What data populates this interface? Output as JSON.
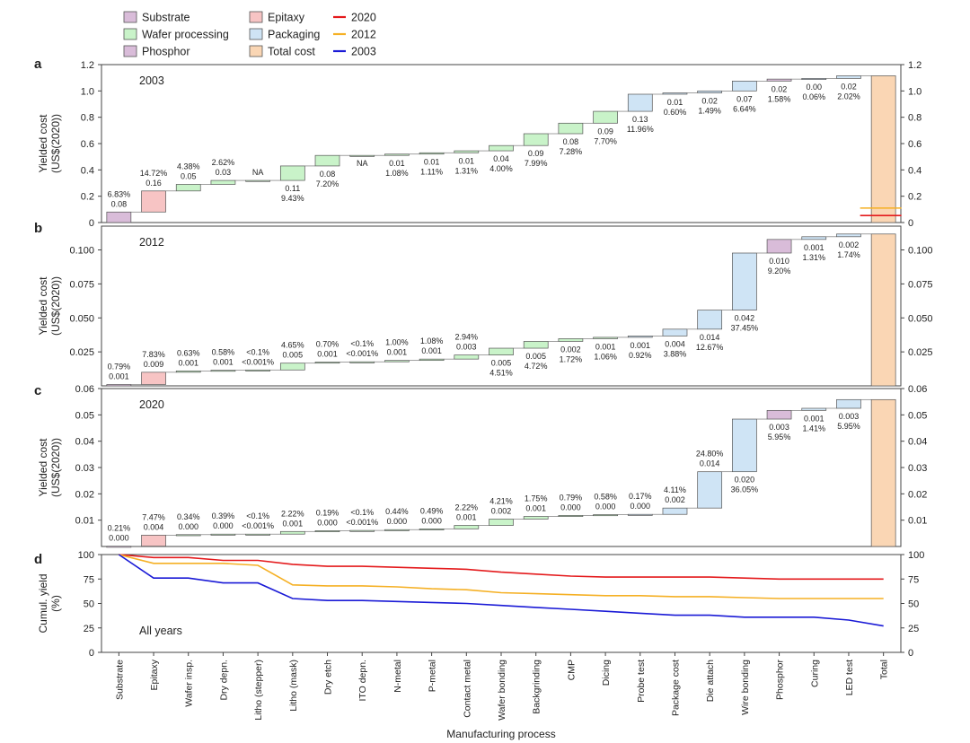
{
  "chart_data": {
    "type": "waterfall",
    "categories": [
      "Substrate",
      "Epitaxy",
      "Wafer insp.",
      "Dry depn.",
      "Litho (stepper)",
      "Litho (mask)",
      "Dry etch",
      "ITO depn.",
      "N-metal",
      "P-metal",
      "Contact metal",
      "Wafer bonding",
      "Backgrinding",
      "CMP",
      "Dicing",
      "Probe test",
      "Package cost",
      "Die attach",
      "Wire bonding",
      "Phosphor",
      "Curing",
      "LED test",
      "Total"
    ],
    "category_types": [
      "Substrate",
      "Epitaxy",
      "Wafer processing",
      "Wafer processing",
      "Wafer processing",
      "Wafer processing",
      "Wafer processing",
      "Wafer processing",
      "Wafer processing",
      "Wafer processing",
      "Wafer processing",
      "Wafer processing",
      "Wafer processing",
      "Wafer processing",
      "Wafer processing",
      "Packaging",
      "Packaging",
      "Packaging",
      "Packaging",
      "Phosphor",
      "Packaging",
      "Packaging",
      "Total cost"
    ],
    "xlabel": "Manufacturing process",
    "legend": {
      "boxes": [
        {
          "label": "Substrate",
          "color": "#d9bcd9"
        },
        {
          "label": "Epitaxy",
          "color": "#f7c4c4"
        },
        {
          "label": "Wafer processing",
          "color": "#c9f3c9"
        },
        {
          "label": "Packaging",
          "color": "#cfe4f5"
        },
        {
          "label": "Phosphor",
          "color": "#d9bcd9"
        },
        {
          "label": "Total cost",
          "color": "#fad6b4"
        }
      ],
      "lines": [
        {
          "label": "2020",
          "color": "#e41a1c"
        },
        {
          "label": "2012",
          "color": "#f5b024"
        },
        {
          "label": "2003",
          "color": "#1a1ad6"
        }
      ]
    },
    "panels": [
      {
        "letter": "a",
        "year": "2003",
        "ylabel": [
          "Yielded cost",
          "(US$(2020))"
        ],
        "ylim": [
          0,
          1.2
        ],
        "yticks": [
          "0",
          "0.2",
          "0.4",
          "0.6",
          "0.8",
          "1.0",
          "1.2"
        ],
        "ytick_values": [
          0,
          0.2,
          0.4,
          0.6,
          0.8,
          1.0,
          1.2
        ],
        "cumulative": [
          0.08,
          0.24,
          0.29,
          0.32,
          0.32,
          0.43,
          0.51,
          0.51,
          0.52,
          0.53,
          0.545,
          0.585,
          0.675,
          0.755,
          0.845,
          0.975,
          0.985,
          1.0,
          1.075,
          1.09,
          1.095,
          1.115,
          1.115
        ],
        "annotations": [
          [
            "6.83%",
            "0.08"
          ],
          [
            "14.72%",
            "0.16"
          ],
          [
            "4.38%",
            "0.05"
          ],
          [
            "2.62%",
            "0.03"
          ],
          [
            "NA"
          ],
          [
            "0.11",
            "9.43%"
          ],
          [
            "0.08",
            "7.20%"
          ],
          [
            "NA"
          ],
          [
            "0.01",
            "1.08%"
          ],
          [
            "0.01",
            "1.11%"
          ],
          [
            "0.01",
            "1.31%"
          ],
          [
            "0.04",
            "4.00%"
          ],
          [
            "0.09",
            "7.99%"
          ],
          [
            "0.08",
            "7.28%"
          ],
          [
            "0.09",
            "7.70%"
          ],
          [
            "0.13",
            "11.96%"
          ],
          [
            "0.01",
            "0.60%"
          ],
          [
            "0.02",
            "1.49%"
          ],
          [
            "0.07",
            "6.64%"
          ],
          [
            "0.02",
            "1.58%"
          ],
          [
            "0.00",
            "0.06%"
          ],
          [
            "0.02",
            "2.02%"
          ],
          []
        ],
        "annotation_position": [
          "above",
          "above",
          "above",
          "above",
          "above",
          "below",
          "below",
          "below",
          "below",
          "below",
          "below",
          "below",
          "below",
          "below",
          "below",
          "below",
          "below",
          "below",
          "below",
          "below",
          "below",
          "below",
          "none"
        ],
        "total_markers": [
          {
            "value": 0.053,
            "color": "#e41a1c"
          },
          {
            "value": 0.11,
            "color": "#f5b024"
          }
        ]
      },
      {
        "letter": "b",
        "year": "2012",
        "ylabel": [
          "Yielded cost",
          "(US$(2020))"
        ],
        "ylim": [
          0,
          0.1175
        ],
        "yticks": [
          "0.025",
          "0.050",
          "0.075",
          "0.100"
        ],
        "ytick_values": [
          0.025,
          0.05,
          0.075,
          0.1
        ],
        "cumulative": [
          0.001,
          0.01,
          0.011,
          0.0115,
          0.0117,
          0.0167,
          0.0175,
          0.0177,
          0.0187,
          0.0197,
          0.0227,
          0.0277,
          0.0327,
          0.0347,
          0.0357,
          0.0367,
          0.0417,
          0.0557,
          0.0977,
          0.1077,
          0.1097,
          0.1117,
          0.1117
        ],
        "annotations": [
          [
            "0.79%",
            "0.001"
          ],
          [
            "7.83%",
            "0.009"
          ],
          [
            "0.63%",
            "0.001"
          ],
          [
            "0.58%",
            "0.001"
          ],
          [
            "<0.1%",
            "<0.001%"
          ],
          [
            "4.65%",
            "0.005"
          ],
          [
            "0.70%",
            "0.001"
          ],
          [
            "<0.1%",
            "<0.001%"
          ],
          [
            "1.00%",
            "0.001"
          ],
          [
            "1.08%",
            "0.001"
          ],
          [
            "2.94%",
            "0.003"
          ],
          [
            "0.005",
            "4.51%"
          ],
          [
            "0.005",
            "4.72%"
          ],
          [
            "0.002",
            "1.72%"
          ],
          [
            "0.001",
            "1.06%"
          ],
          [
            "0.001",
            "0.92%"
          ],
          [
            "0.004",
            "3.88%"
          ],
          [
            "0.014",
            "12.67%"
          ],
          [
            "0.042",
            "37.45%"
          ],
          [
            "0.010",
            "9.20%"
          ],
          [
            "0.001",
            "1.31%"
          ],
          [
            "0.002",
            "1.74%"
          ],
          []
        ],
        "annotation_position": [
          "above",
          "above",
          "above",
          "above",
          "above",
          "above",
          "above",
          "above",
          "above",
          "above",
          "above",
          "below",
          "below",
          "below",
          "below",
          "below",
          "below",
          "below",
          "below",
          "below",
          "below",
          "below",
          "none"
        ]
      },
      {
        "letter": "c",
        "year": "2020",
        "ylabel": [
          "Yielded cost",
          "(US$(2020))"
        ],
        "ylim": [
          0,
          0.06
        ],
        "yticks": [
          "0.01",
          "0.02",
          "0.03",
          "0.04",
          "0.05",
          "0.06"
        ],
        "ytick_values": [
          0.01,
          0.02,
          0.03,
          0.04,
          0.05,
          0.06
        ],
        "cumulative": [
          0.0001,
          0.0043,
          0.0045,
          0.0047,
          0.0047,
          0.0057,
          0.006,
          0.0061,
          0.0064,
          0.0067,
          0.008,
          0.0104,
          0.0114,
          0.0118,
          0.0121,
          0.0122,
          0.0146,
          0.0284,
          0.0484,
          0.0517,
          0.0525,
          0.0558,
          0.0558
        ],
        "annotations": [
          [
            "0.21%",
            "0.000"
          ],
          [
            "7.47%",
            "0.004"
          ],
          [
            "0.34%",
            "0.000"
          ],
          [
            "0.39%",
            "0.000"
          ],
          [
            "<0.1%",
            "<0.001%"
          ],
          [
            "2.22%",
            "0.001"
          ],
          [
            "0.19%",
            "0.000"
          ],
          [
            "<0.1%",
            "<0.001%"
          ],
          [
            "0.44%",
            "0.000"
          ],
          [
            "0.49%",
            "0.000"
          ],
          [
            "2.22%",
            "0.001"
          ],
          [
            "4.21%",
            "0.002"
          ],
          [
            "1.75%",
            "0.001"
          ],
          [
            "0.79%",
            "0.000"
          ],
          [
            "0.58%",
            "0.000"
          ],
          [
            "0.17%",
            "0.000"
          ],
          [
            "4.11%",
            "0.002"
          ],
          [
            "24.80%",
            "0.014"
          ],
          [
            "0.020",
            "36.05%"
          ],
          [
            "0.003",
            "5.95%"
          ],
          [
            "0.001",
            "1.41%"
          ],
          [
            "0.003",
            "5.95%"
          ],
          []
        ],
        "annotation_position": [
          "above",
          "above",
          "above",
          "above",
          "above",
          "above",
          "above",
          "above",
          "above",
          "above",
          "above",
          "above",
          "above",
          "above",
          "above",
          "above",
          "above",
          "above",
          "below",
          "below",
          "below",
          "below",
          "none"
        ]
      },
      {
        "letter": "d",
        "year": "All years",
        "ylabel": [
          "Cumul. yield",
          "(%)"
        ],
        "ylim": [
          0,
          100
        ],
        "yticks": [
          "0",
          "25",
          "50",
          "75",
          "100"
        ],
        "ytick_values": [
          0,
          25,
          50,
          75,
          100
        ],
        "series": [
          {
            "name": "2020",
            "color": "#e41a1c",
            "values": [
              100,
              97,
              97,
              94,
              94,
              90,
              88,
              88,
              87,
              86,
              85,
              82,
              80,
              78,
              77,
              77,
              77,
              77,
              76,
              75,
              75,
              75,
              75
            ]
          },
          {
            "name": "2012",
            "color": "#f5b024",
            "values": [
              100,
              91,
              91,
              91,
              89,
              69,
              68,
              68,
              67,
              65,
              64,
              61,
              60,
              59,
              58,
              58,
              57,
              57,
              56,
              55,
              55,
              55,
              55
            ]
          },
          {
            "name": "2003",
            "color": "#1a1ad6",
            "values": [
              100,
              76,
              76,
              71,
              71,
              55,
              53,
              53,
              52,
              51,
              50,
              48,
              46,
              44,
              42,
              40,
              38,
              38,
              36,
              36,
              36,
              33,
              27
            ]
          }
        ]
      }
    ]
  }
}
